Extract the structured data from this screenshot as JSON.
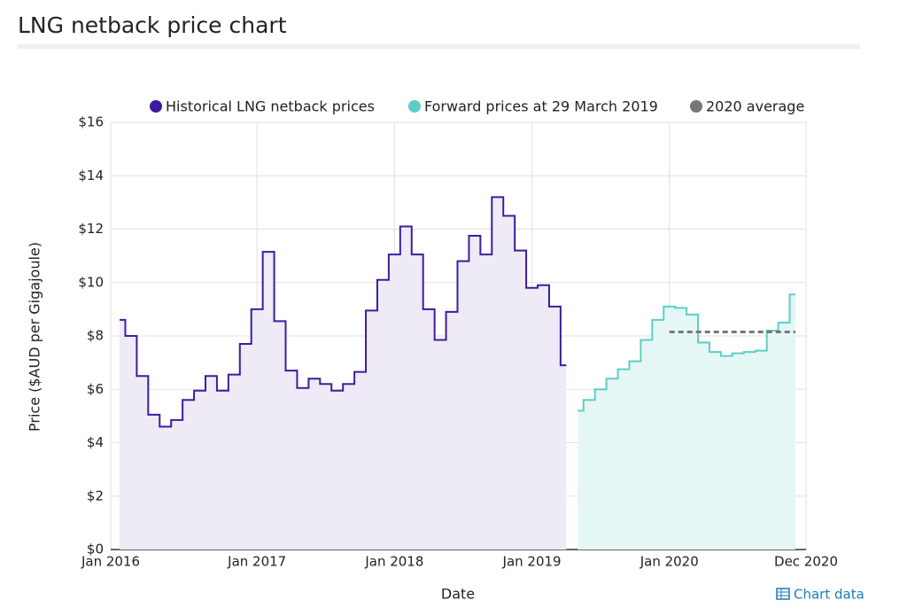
{
  "chart_data": {
    "type": "step",
    "title": "LNG netback price chart",
    "xlabel": "Date",
    "ylabel": "Price ($AUD per Gigajoule)",
    "link": "Chart data",
    "xlim": [
      "2016-01",
      "2020-12"
    ],
    "xticks": [
      {
        "value": "2016-01",
        "label": "Jan 2016"
      },
      {
        "value": "2017-01",
        "label": "Jan 2017"
      },
      {
        "value": "2018-01",
        "label": "Jan 2018"
      },
      {
        "value": "2019-01",
        "label": "Jan 2019"
      },
      {
        "value": "2020-01",
        "label": "Jan 2020"
      },
      {
        "value": "2020-12",
        "label": "Dec 2020"
      }
    ],
    "ylim": [
      0,
      16
    ],
    "yticks": [
      {
        "value": 0,
        "label": "$0"
      },
      {
        "value": 2,
        "label": "$2"
      },
      {
        "value": 4,
        "label": "$4"
      },
      {
        "value": 6,
        "label": "$6"
      },
      {
        "value": 8,
        "label": "$8"
      },
      {
        "value": 10,
        "label": "$10"
      },
      {
        "value": 12,
        "label": "$12"
      },
      {
        "value": 14,
        "label": "$14"
      },
      {
        "value": 16,
        "label": "$16"
      }
    ],
    "grid": true,
    "legend": "top",
    "series": [
      {
        "name": "Historical LNG netback prices",
        "color": "#3f1c9e",
        "fill": "#eeeaf6",
        "x": [
          "2016-01",
          "2016-02",
          "2016-03",
          "2016-04",
          "2016-05",
          "2016-06",
          "2016-07",
          "2016-08",
          "2016-09",
          "2016-10",
          "2016-11",
          "2016-12",
          "2017-01",
          "2017-02",
          "2017-03",
          "2017-04",
          "2017-05",
          "2017-06",
          "2017-07",
          "2017-08",
          "2017-09",
          "2017-10",
          "2017-11",
          "2017-12",
          "2018-01",
          "2018-02",
          "2018-03",
          "2018-04",
          "2018-05",
          "2018-06",
          "2018-07",
          "2018-08",
          "2018-09",
          "2018-10",
          "2018-11",
          "2018-12",
          "2019-01",
          "2019-02",
          "2019-03",
          "2019-04"
        ],
        "values": [
          8.6,
          8.0,
          6.5,
          5.05,
          4.6,
          4.85,
          5.6,
          5.95,
          6.5,
          5.95,
          6.55,
          7.7,
          9.0,
          11.15,
          8.55,
          6.7,
          6.05,
          6.4,
          6.2,
          5.95,
          6.2,
          6.65,
          8.95,
          10.1,
          11.05,
          12.1,
          11.05,
          9.0,
          7.85,
          8.9,
          10.8,
          11.75,
          11.05,
          13.2,
          12.5,
          11.2,
          9.8,
          9.9,
          9.1,
          6.9
        ]
      },
      {
        "name": "Forward prices at 29 March 2019",
        "color": "#5ecdc6",
        "fill": "#e5f7f5",
        "x": [
          "2019-05",
          "2019-06",
          "2019-07",
          "2019-08",
          "2019-09",
          "2019-10",
          "2019-11",
          "2019-12",
          "2020-01",
          "2020-02",
          "2020-03",
          "2020-04",
          "2020-05",
          "2020-06",
          "2020-07",
          "2020-08",
          "2020-09",
          "2020-10",
          "2020-11",
          "2020-12"
        ],
        "values": [
          5.2,
          5.6,
          6.0,
          6.4,
          6.75,
          7.05,
          7.85,
          8.6,
          9.1,
          9.05,
          8.8,
          7.75,
          7.4,
          7.25,
          7.35,
          7.4,
          7.45,
          8.2,
          8.5,
          9.55
        ]
      },
      {
        "name": "2020 average",
        "color": "#777777",
        "dashed": true,
        "x": [
          "2020-01",
          "2020-12"
        ],
        "values": [
          8.15,
          8.15
        ]
      }
    ]
  }
}
